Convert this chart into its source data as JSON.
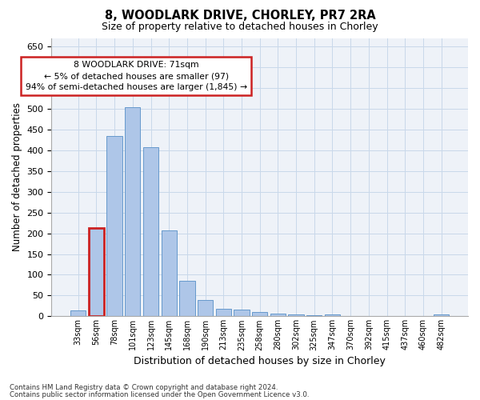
{
  "title_line1": "8, WOODLARK DRIVE, CHORLEY, PR7 2RA",
  "title_line2": "Size of property relative to detached houses in Chorley",
  "xlabel": "Distribution of detached houses by size in Chorley",
  "ylabel": "Number of detached properties",
  "bar_labels": [
    "33sqm",
    "56sqm",
    "78sqm",
    "101sqm",
    "123sqm",
    "145sqm",
    "168sqm",
    "190sqm",
    "213sqm",
    "235sqm",
    "258sqm",
    "280sqm",
    "302sqm",
    "325sqm",
    "347sqm",
    "370sqm",
    "392sqm",
    "415sqm",
    "437sqm",
    "460sqm",
    "482sqm"
  ],
  "bar_values": [
    15,
    212,
    435,
    503,
    408,
    207,
    86,
    39,
    18,
    17,
    11,
    6,
    5,
    3,
    4,
    1,
    1,
    1,
    0,
    0,
    5
  ],
  "bar_color": "#aec6e8",
  "bar_edge_color": "#6699cc",
  "highlight_bar_index": 1,
  "highlight_bar_color": "#cc2222",
  "annotation_text": "8 WOODLARK DRIVE: 71sqm\n← 5% of detached houses are smaller (97)\n94% of semi-detached houses are larger (1,845) →",
  "annotation_box_color": "#ffffff",
  "annotation_border_color": "#cc2222",
  "ylim": [
    0,
    670
  ],
  "yticks": [
    0,
    50,
    100,
    150,
    200,
    250,
    300,
    350,
    400,
    450,
    500,
    550,
    600,
    650
  ],
  "grid_color": "#c8d8ea",
  "background_color": "#eef2f8",
  "footer_line1": "Contains HM Land Registry data © Crown copyright and database right 2024.",
  "footer_line2": "Contains public sector information licensed under the Open Government Licence v3.0."
}
